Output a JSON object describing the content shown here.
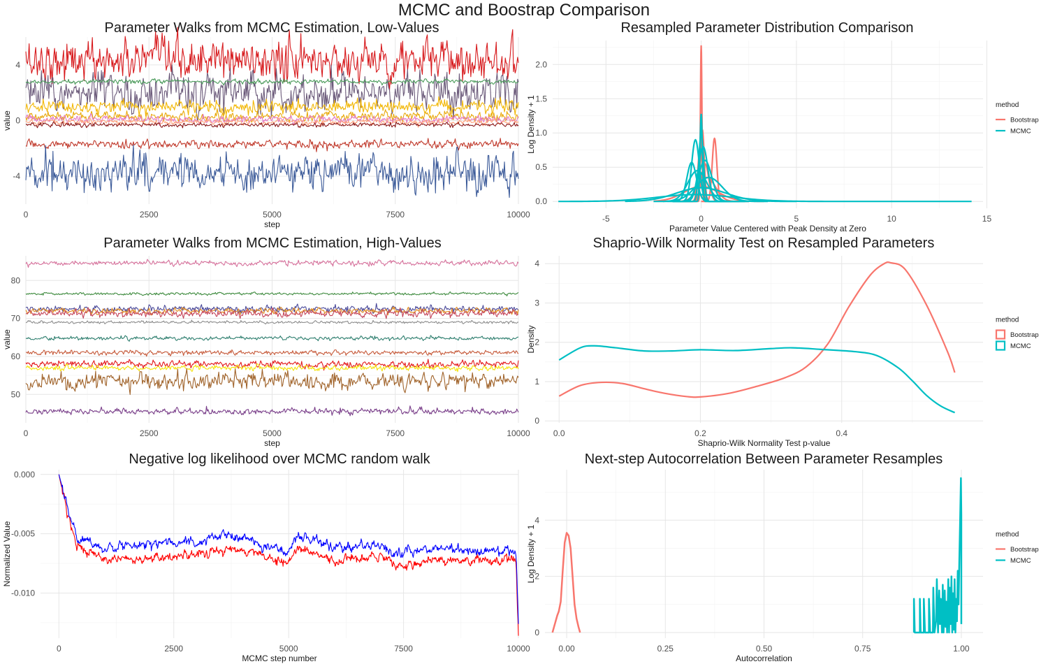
{
  "title": "MCMC and Boostrap Comparison",
  "chart_data": [
    {
      "id": "low",
      "type": "line",
      "title": "Parameter Walks from MCMC Estimation, Low-Values",
      "xlabel": "step",
      "ylabel": "value",
      "xlim": [
        0,
        10000
      ],
      "ylim": [
        -6.0,
        6.0
      ],
      "xticks": [
        0,
        2500,
        5000,
        7500,
        10000
      ],
      "yticks": [
        -4,
        0,
        4
      ],
      "grid": true,
      "series": [
        {
          "mean": 4.3,
          "noise": 1.05,
          "color": "#d7191c",
          "lw": 1.1
        },
        {
          "mean": 2.0,
          "noise": 1.05,
          "color": "#6b5a7a",
          "lw": 1.1
        },
        {
          "mean": 2.8,
          "noise": 0.12,
          "color": "#4a9a5a",
          "lw": 1.1
        },
        {
          "mean": 1.0,
          "noise": 0.35,
          "color": "#f2b705",
          "lw": 1.1
        },
        {
          "mean": 0.3,
          "noise": 0.25,
          "color": "#e8a90c",
          "lw": 1.1
        },
        {
          "mean": 0.1,
          "noise": 0.18,
          "color": "#e377c2",
          "lw": 1.1
        },
        {
          "mean": -0.1,
          "noise": 0.15,
          "color": "#ffa07a",
          "lw": 1.1
        },
        {
          "mean": -0.3,
          "noise": 0.12,
          "color": "#8b1a1a",
          "lw": 1.1
        },
        {
          "mean": -1.7,
          "noise": 0.22,
          "color": "#c0392b",
          "lw": 1.1
        },
        {
          "mean": -3.8,
          "noise": 1.0,
          "color": "#3b5a99",
          "lw": 1.1
        }
      ]
    },
    {
      "id": "density1",
      "type": "line",
      "title": "Resampled Parameter Distribution Comparison",
      "xlabel": "Parameter Value Centered with Peak Density at Zero",
      "ylabel": "Log Density + 1",
      "xlim": [
        -7.8,
        14.8
      ],
      "ylim": [
        -0.1,
        2.35
      ],
      "xticks": [
        -5,
        0,
        5,
        10,
        15
      ],
      "yticks": [
        0.0,
        0.5,
        1.0,
        1.5,
        2.0
      ],
      "ytick_labels": [
        "0.0",
        "0.5",
        "1.0",
        "1.5",
        "2.0"
      ],
      "grid": true,
      "legend": {
        "title": "method",
        "position": "right",
        "items": [
          "Bootstrap",
          "MCMC"
        ],
        "colors": [
          "#f8766d",
          "#00bfc4"
        ]
      },
      "series": [
        {
          "group": "Bootstrap",
          "color": "#f8766d",
          "lw": 2.2,
          "peaks": [
            [
              0,
              2.28,
              0.04,
              -0.7,
              1.3
            ],
            [
              0.06,
              1.05,
              0.1,
              -1.0,
              1.6
            ],
            [
              -0.05,
              0.8,
              0.12,
              -1.2,
              1.5
            ],
            [
              0.7,
              0.92,
              0.12,
              0.0,
              1.4
            ],
            [
              0.2,
              0.55,
              0.2,
              -1.1,
              1.8
            ],
            [
              0.3,
              0.35,
              0.45,
              -1.5,
              2.5
            ],
            [
              0.0,
              0.22,
              0.9,
              -2.5,
              3.3
            ]
          ]
        },
        {
          "group": "MCMC",
          "color": "#00bfc4",
          "lw": 2.2,
          "peaks": [
            [
              0,
              1.28,
              0.06,
              -1.2,
              1.4
            ],
            [
              0,
              1.0,
              0.12,
              -1.3,
              1.5
            ],
            [
              -0.3,
              0.9,
              0.2,
              -1.5,
              1.6
            ],
            [
              0.1,
              0.8,
              0.25,
              -1.5,
              2.0
            ],
            [
              -0.5,
              0.57,
              0.25,
              -1.8,
              1.5
            ],
            [
              0.2,
              0.6,
              0.35,
              -1.5,
              2.3
            ],
            [
              -0.2,
              0.45,
              0.5,
              -2.0,
              2.5
            ],
            [
              0.4,
              0.35,
              0.7,
              -2.5,
              3.5
            ],
            [
              0.0,
              0.2,
              1.3,
              -4.0,
              5.0
            ],
            [
              -0.3,
              0.1,
              2.0,
              -7.5,
              14.2
            ]
          ]
        }
      ]
    },
    {
      "id": "high",
      "type": "line",
      "title": "Parameter Walks from MCMC Estimation, High-Values",
      "xlabel": "step",
      "ylabel": "value",
      "xlim": [
        0,
        10000
      ],
      "ylim": [
        42.5,
        86.5
      ],
      "xticks": [
        0,
        2500,
        5000,
        7500,
        10000
      ],
      "yticks": [
        50,
        60,
        70,
        80
      ],
      "grid": true,
      "series": [
        {
          "mean": 84.6,
          "noise": 0.45,
          "color": "#d6729c",
          "lw": 1.1
        },
        {
          "mean": 76.5,
          "noise": 0.25,
          "color": "#3d8a3d",
          "lw": 1.1
        },
        {
          "mean": 72.5,
          "noise": 0.65,
          "color": "#4b4a9a",
          "lw": 1.1
        },
        {
          "mean": 72.0,
          "noise": 0.6,
          "color": "#e08a1e",
          "lw": 1.1
        },
        {
          "mean": 71.3,
          "noise": 0.7,
          "color": "#c4455a",
          "lw": 1.1
        },
        {
          "mean": 69.0,
          "noise": 0.25,
          "color": "#8c8c8c",
          "lw": 1.1
        },
        {
          "mean": 64.8,
          "noise": 0.35,
          "color": "#2e7f6f",
          "lw": 1.1
        },
        {
          "mean": 61.0,
          "noise": 0.45,
          "color": "#c65a3a",
          "lw": 1.1
        },
        {
          "mean": 58.0,
          "noise": 0.7,
          "color": "#e31a1c",
          "lw": 1.1
        },
        {
          "mean": 57.0,
          "noise": 0.5,
          "color": "#f5e30a",
          "lw": 1.1
        },
        {
          "mean": 53.5,
          "noise": 1.6,
          "color": "#a0632a",
          "lw": 1.1
        },
        {
          "mean": 45.5,
          "noise": 0.6,
          "color": "#7a3f8a",
          "lw": 1.1
        }
      ]
    },
    {
      "id": "shapiro",
      "type": "line",
      "title": "Shaprio-Wilk Normality Test on Resampled Parameters",
      "xlabel": "Shaprio-Wilk Normality Test p-value",
      "ylabel": "Density",
      "xlim": [
        -0.02,
        0.6
      ],
      "ylim": [
        -0.05,
        4.2
      ],
      "xticks": [
        0.0,
        0.2,
        0.4
      ],
      "xtick_labels": [
        "0.0",
        "0.2",
        "0.4"
      ],
      "yticks": [
        0,
        1,
        2,
        3,
        4
      ],
      "grid": true,
      "legend": {
        "title": "method",
        "position": "right",
        "items": [
          "Bootstrap",
          "MCMC"
        ],
        "colors": [
          "#f8766d",
          "#00bfc4"
        ]
      },
      "series": [
        {
          "name": "Bootstrap",
          "color": "#f8766d",
          "lw": 2.2,
          "x": [
            0.0,
            0.03,
            0.06,
            0.09,
            0.12,
            0.15,
            0.18,
            0.2,
            0.24,
            0.28,
            0.32,
            0.35,
            0.38,
            0.41,
            0.44,
            0.46,
            0.47,
            0.49,
            0.52,
            0.55,
            0.56
          ],
          "y": [
            0.63,
            0.9,
            0.98,
            0.95,
            0.82,
            0.7,
            0.62,
            0.61,
            0.7,
            0.88,
            1.1,
            1.38,
            1.95,
            2.9,
            3.7,
            4.0,
            4.02,
            3.85,
            2.95,
            1.75,
            1.23
          ]
        },
        {
          "name": "MCMC",
          "color": "#00bfc4",
          "lw": 2.2,
          "x": [
            0.0,
            0.03,
            0.05,
            0.08,
            0.12,
            0.16,
            0.2,
            0.25,
            0.3,
            0.33,
            0.37,
            0.42,
            0.45,
            0.48,
            0.5,
            0.52,
            0.54,
            0.56
          ],
          "y": [
            1.55,
            1.86,
            1.91,
            1.86,
            1.78,
            1.78,
            1.81,
            1.79,
            1.84,
            1.86,
            1.82,
            1.76,
            1.66,
            1.35,
            1.02,
            0.65,
            0.38,
            0.21
          ]
        }
      ]
    },
    {
      "id": "nll",
      "type": "line",
      "title": "Negative log likelihood over MCMC random walk",
      "xlabel": "MCMC step number",
      "ylabel": "Normalized Value",
      "xlim": [
        -400,
        10000
      ],
      "ylim": [
        -0.0138,
        0.0004
      ],
      "xticks": [
        0,
        2500,
        5000,
        7500,
        10000
      ],
      "yticks": [
        0.0,
        -0.005,
        -0.01
      ],
      "ytick_labels": [
        "0.000",
        "-0.005",
        "-0.010"
      ],
      "grid": true,
      "series": [
        {
          "color": "#ff0000",
          "lw": 1.1,
          "levels": [
            [
              0,
              0.0
            ],
            [
              150,
              -0.0028
            ],
            [
              400,
              -0.0062
            ],
            [
              1000,
              -0.0072
            ],
            [
              2000,
              -0.007
            ],
            [
              3000,
              -0.0068
            ],
            [
              3600,
              -0.0062
            ],
            [
              4500,
              -0.0068
            ],
            [
              5000,
              -0.0075
            ],
            [
              5200,
              -0.0062
            ],
            [
              6000,
              -0.0072
            ],
            [
              7000,
              -0.007
            ],
            [
              7400,
              -0.0078
            ],
            [
              8000,
              -0.0072
            ],
            [
              9000,
              -0.0072
            ],
            [
              9950,
              -0.0072
            ],
            [
              10000,
              -0.0136
            ]
          ],
          "noise": 0.00042
        },
        {
          "color": "#0000ff",
          "lw": 1.1,
          "levels": [
            [
              0,
              0.0
            ],
            [
              150,
              -0.0022
            ],
            [
              400,
              -0.0052
            ],
            [
              1000,
              -0.0062
            ],
            [
              2000,
              -0.0058
            ],
            [
              3000,
              -0.0058
            ],
            [
              3600,
              -0.005
            ],
            [
              4500,
              -0.006
            ],
            [
              5000,
              -0.0066
            ],
            [
              5200,
              -0.0052
            ],
            [
              6000,
              -0.0062
            ],
            [
              7000,
              -0.006
            ],
            [
              7400,
              -0.0068
            ],
            [
              8000,
              -0.0062
            ],
            [
              9000,
              -0.0064
            ],
            [
              9950,
              -0.0064
            ],
            [
              10000,
              -0.0126
            ]
          ],
          "noise": 0.00042
        }
      ]
    },
    {
      "id": "autocorr",
      "type": "line",
      "title": "Next-step Autocorrelation Between Parameter Resamples",
      "xlabel": "Autocorrelation",
      "ylabel": "Log Density + 1",
      "xlim": [
        -0.055,
        1.055
      ],
      "ylim": [
        -0.2,
        5.8
      ],
      "xticks": [
        0.0,
        0.25,
        0.5,
        0.75,
        1.0
      ],
      "xtick_labels": [
        "0.00",
        "0.25",
        "0.50",
        "0.75",
        "1.00"
      ],
      "yticks": [
        0,
        2,
        4
      ],
      "grid": true,
      "legend": {
        "title": "method",
        "position": "right",
        "items": [
          "Bootstrap",
          "MCMC"
        ],
        "colors": [
          "#f8766d",
          "#00bfc4"
        ]
      },
      "series": [
        {
          "name": "Bootstrap",
          "color": "#f8766d",
          "lw": 2.5,
          "x": [
            -0.036,
            -0.03,
            -0.024,
            -0.02,
            -0.015,
            -0.01,
            -0.005,
            0.0,
            0.005,
            0.01,
            0.015,
            0.02,
            0.025,
            0.03,
            0.034
          ],
          "y": [
            0.0,
            0.3,
            0.6,
            0.75,
            1.1,
            2.2,
            3.2,
            3.55,
            3.45,
            3.0,
            2.0,
            1.0,
            0.5,
            0.2,
            0.0
          ]
        },
        {
          "name": "MCMC",
          "color": "#00bfc4",
          "lw": 2.5,
          "x": [
            0.88,
            0.88,
            0.882,
            0.895,
            0.895,
            0.897,
            0.905,
            0.905,
            0.908,
            0.918,
            0.918,
            0.921,
            0.928,
            0.929,
            0.932,
            0.936,
            0.938,
            0.941,
            0.944,
            0.946,
            0.948,
            0.951,
            0.953,
            0.955,
            0.958,
            0.96,
            0.962,
            0.964,
            0.967,
            0.969,
            0.971,
            0.973,
            0.975,
            0.977,
            0.979,
            0.981,
            0.983,
            0.985,
            0.987,
            0.989,
            0.991,
            0.993,
            0.995,
            0.997,
            0.999,
            1.0,
            1.0
          ],
          "y": [
            0.0,
            1.2,
            0.0,
            0.0,
            1.2,
            0.0,
            0.0,
            1.2,
            0.0,
            0.0,
            1.2,
            0.0,
            0.0,
            1.6,
            0.0,
            0.4,
            1.9,
            0.0,
            1.5,
            0.3,
            1.2,
            0.0,
            1.7,
            0.0,
            1.5,
            0.2,
            1.1,
            0.0,
            1.9,
            0.0,
            1.6,
            0.3,
            2.0,
            0.0,
            1.4,
            0.1,
            1.9,
            0.0,
            1.2,
            0.4,
            2.2,
            1.0,
            2.6,
            4.0,
            5.5,
            4.2,
            0.3
          ]
        }
      ]
    }
  ]
}
